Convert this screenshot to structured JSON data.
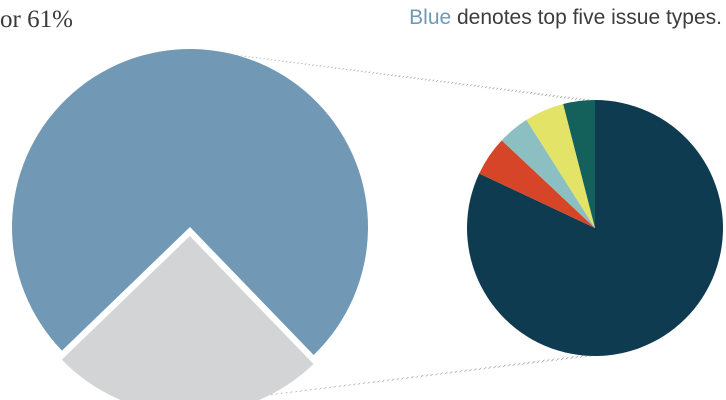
{
  "caption_left": "or 61%",
  "legend_note": {
    "highlight": "Blue",
    "rest": " denotes top five issue types."
  },
  "colors": {
    "big_pie_main": "#7199b6",
    "big_pie_other": "#d3d4d6",
    "small_pie_main": "#0f3b50",
    "red": "#d64528",
    "teal_light": "#8bbfc2",
    "yellow": "#e3e467",
    "teal_dark": "#14605a",
    "connector": "#8a8a8a",
    "highlight_text": "#7099b8",
    "text": "#3d3d3d"
  },
  "chart_data": [
    {
      "type": "pie",
      "slices": [
        {
          "value": 75,
          "color": "#7199b6"
        },
        {
          "value": 25,
          "color": "#d3d4d6"
        }
      ]
    },
    {
      "type": "pie",
      "slices": [
        {
          "value": 82,
          "color": "#0f3b50"
        },
        {
          "value": 5,
          "color": "#d64528"
        },
        {
          "value": 4,
          "color": "#8bbfc2"
        },
        {
          "value": 5,
          "color": "#e3e467"
        },
        {
          "value": 4,
          "color": "#14605a"
        }
      ]
    }
  ]
}
